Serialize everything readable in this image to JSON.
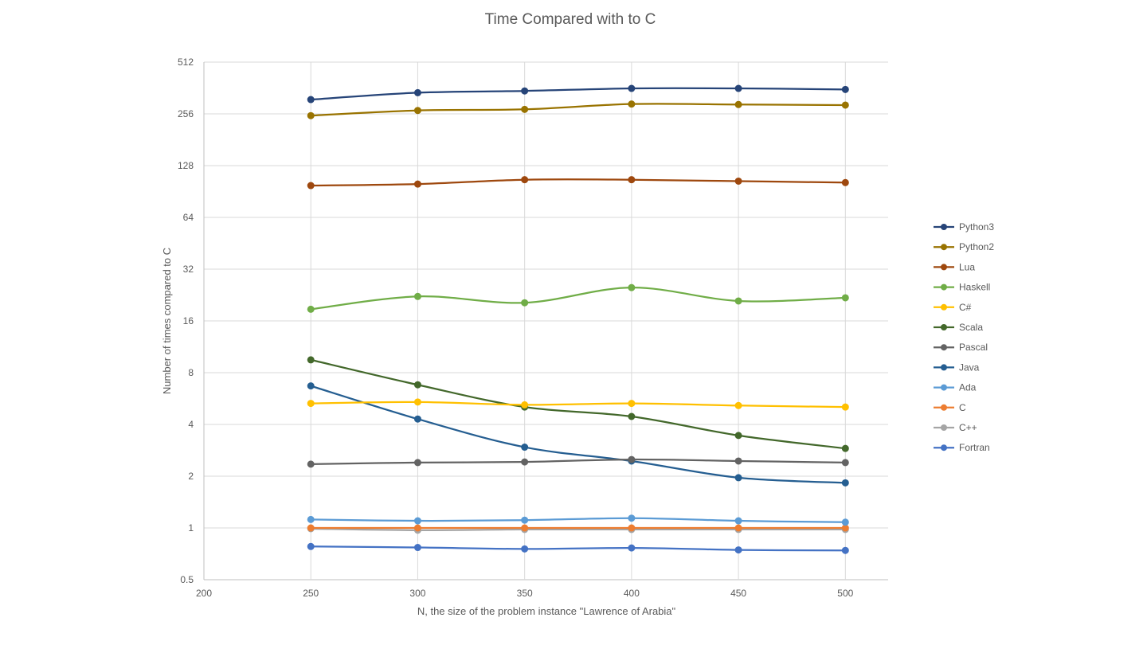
{
  "chart_data": {
    "type": "line",
    "title": "Time Compared with to C",
    "xlabel": "N, the size of the problem instance \"Lawrence of Arabia\"",
    "ylabel": "Number of times compared to C",
    "x_scale": "linear",
    "y_scale": "log2",
    "xlim": [
      200,
      520
    ],
    "ylim": [
      0.5,
      512
    ],
    "x_ticks": [
      200,
      250,
      300,
      350,
      400,
      450,
      500
    ],
    "x_tick_labels": [
      "200",
      "250",
      "300",
      "350",
      "400",
      "450",
      "500"
    ],
    "y_ticks": [
      0.5,
      1,
      2,
      4,
      8,
      16,
      32,
      64,
      128,
      256,
      512
    ],
    "y_tick_labels": [
      "0.5",
      "1",
      "2",
      "4",
      "8",
      "16",
      "32",
      "64",
      "128",
      "256",
      "512"
    ],
    "grid": true,
    "legend_position": "right",
    "x": [
      250,
      300,
      350,
      400,
      450,
      500
    ],
    "series": [
      {
        "name": "Python3",
        "color": "#264478",
        "values": [
          310,
          340,
          348,
          360,
          360,
          355
        ]
      },
      {
        "name": "Python2",
        "color": "#997300",
        "values": [
          250,
          268,
          272,
          292,
          290,
          288
        ]
      },
      {
        "name": "Lua",
        "color": "#9e480e",
        "values": [
          98,
          100,
          106,
          106,
          104,
          102
        ]
      },
      {
        "name": "Haskell",
        "color": "#70ad47",
        "values": [
          18.7,
          22.2,
          20.4,
          25.0,
          20.9,
          21.8
        ]
      },
      {
        "name": "C#",
        "color": "#ffc000",
        "values": [
          5.3,
          5.4,
          5.2,
          5.3,
          5.15,
          5.05
        ]
      },
      {
        "name": "Scala",
        "color": "#43682b",
        "values": [
          9.5,
          6.8,
          5.05,
          4.45,
          3.45,
          2.9
        ]
      },
      {
        "name": "Pascal",
        "color": "#636363",
        "values": [
          2.35,
          2.4,
          2.42,
          2.5,
          2.45,
          2.4
        ]
      },
      {
        "name": "Java",
        "color": "#255e91",
        "values": [
          6.7,
          4.3,
          2.95,
          2.45,
          1.96,
          1.83
        ]
      },
      {
        "name": "Ada",
        "color": "#5b9bd5",
        "values": [
          1.12,
          1.1,
          1.11,
          1.14,
          1.1,
          1.08
        ]
      },
      {
        "name": "C",
        "color": "#ed7d31",
        "values": [
          1.0,
          1.0,
          1.0,
          1.0,
          1.0,
          1.0
        ]
      },
      {
        "name": "C++",
        "color": "#a5a5a5",
        "values": [
          0.99,
          0.97,
          0.98,
          0.98,
          0.98,
          0.98
        ]
      },
      {
        "name": "Fortran",
        "color": "#4472c4",
        "values": [
          0.78,
          0.77,
          0.755,
          0.765,
          0.745,
          0.74
        ]
      }
    ]
  }
}
